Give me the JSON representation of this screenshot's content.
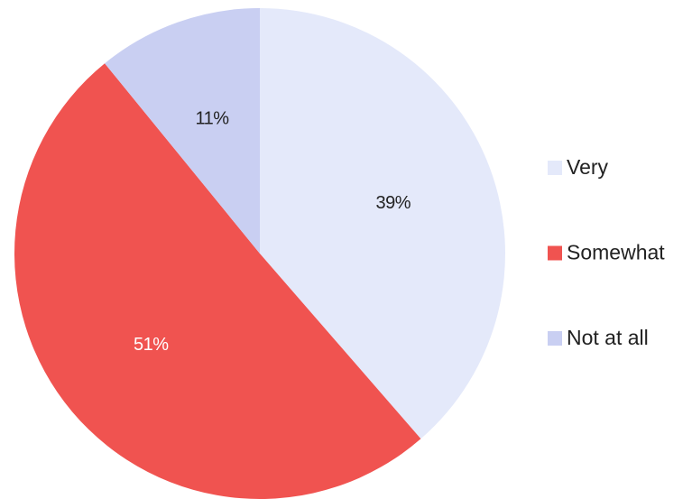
{
  "chart_data": {
    "type": "pie",
    "categories": [
      "Very",
      "Somewhat",
      "Not at all"
    ],
    "values": [
      39,
      51,
      11
    ],
    "value_labels": [
      "39%",
      "51%",
      "11%"
    ],
    "colors": [
      "#e4e9fa",
      "#f05350",
      "#c9cff2"
    ],
    "legend": "right"
  }
}
